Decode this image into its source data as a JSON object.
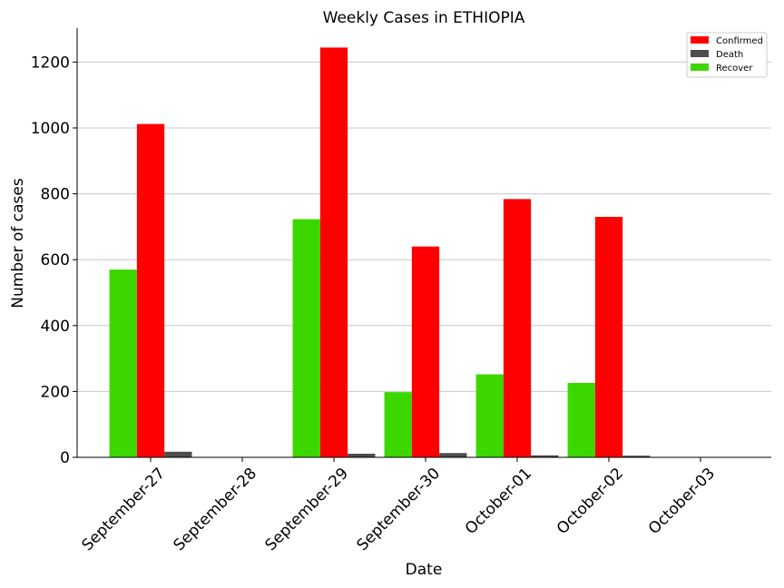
{
  "chart_data": {
    "type": "bar",
    "title": "Weekly Cases in ETHIOPIA",
    "xlabel": "Date",
    "ylabel": "Number of cases",
    "categories": [
      "September-27",
      "September-28",
      "September-29",
      "September-30",
      "October-01",
      "October-02",
      "October-03"
    ],
    "series": [
      {
        "name": "Recover",
        "color": "#3dd700",
        "values": [
          570,
          0,
          723,
          198,
          252,
          226,
          0
        ]
      },
      {
        "name": "Confirmed",
        "color": "#ff0000",
        "values": [
          1012,
          0,
          1244,
          640,
          784,
          730,
          0
        ]
      },
      {
        "name": "Death",
        "color": "#4d4d4d",
        "values": [
          17,
          0,
          11,
          13,
          6,
          5,
          0
        ]
      }
    ],
    "legend_order": [
      "Confirmed",
      "Death",
      "Recover"
    ],
    "ylim": [
      0,
      1303
    ],
    "yticks": [
      0,
      200,
      400,
      600,
      800,
      1000,
      1200
    ],
    "grid": "horizontal",
    "legend_position": "top-right"
  }
}
